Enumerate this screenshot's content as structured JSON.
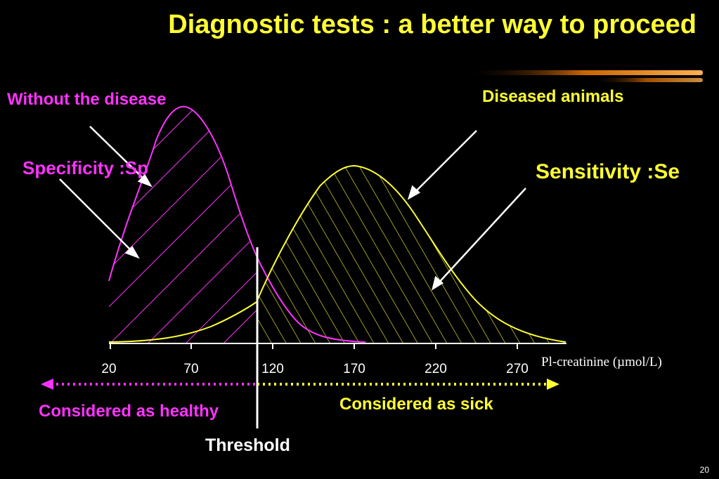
{
  "title": "Diagnostic tests : a better way to proceed",
  "labels": {
    "without_disease": "Without the disease",
    "diseased": "Diseased animals",
    "specificity": "Specificity :Sp",
    "sensitivity": "Sensitivity :Se",
    "healthy": "Considered as healthy",
    "sick": "Considered as sick",
    "threshold": "Threshold"
  },
  "axis": {
    "ticks": [
      "20",
      "70",
      "120",
      "170",
      "220",
      "270"
    ],
    "unit": "Pl-creatinine (µmol/L)"
  },
  "page_number": "20",
  "colors": {
    "healthy": "#ff33ff",
    "diseased": "#ffff33",
    "axis": "#ffffff",
    "background": "#000000"
  }
}
